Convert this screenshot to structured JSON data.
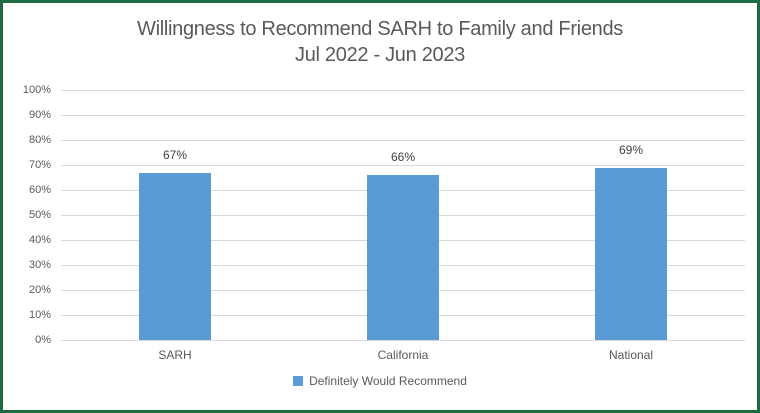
{
  "chart_data": {
    "type": "bar",
    "title": "Willingness to Recommend SARH to Family and Friends",
    "subtitle": "Jul 2022 - Jun 2023",
    "categories": [
      "SARH",
      "California",
      "National"
    ],
    "series": [
      {
        "name": "Definitely Would Recommend",
        "values": [
          67,
          66,
          69
        ],
        "color": "#5B9BD5"
      }
    ],
    "data_labels": [
      "67%",
      "66%",
      "69%"
    ],
    "ytick_labels": [
      "0%",
      "10%",
      "20%",
      "30%",
      "40%",
      "50%",
      "60%",
      "70%",
      "80%",
      "90%",
      "100%"
    ],
    "ylim": [
      0,
      100
    ],
    "ytick_step": 10,
    "xlabel": "",
    "ylabel": "",
    "grid": true,
    "legend_position": "bottom"
  },
  "legend": {
    "items": [
      {
        "label": "Definitely Would Recommend",
        "color": "#5B9BD5"
      }
    ]
  },
  "colors": {
    "border": "#1E6B41",
    "background": "#FFFFFF",
    "title_text": "#595959",
    "axis_text": "#595959",
    "data_label_text": "#404040",
    "gridline": "#D9D9D9",
    "bar_fill": "#5B9BD5"
  }
}
